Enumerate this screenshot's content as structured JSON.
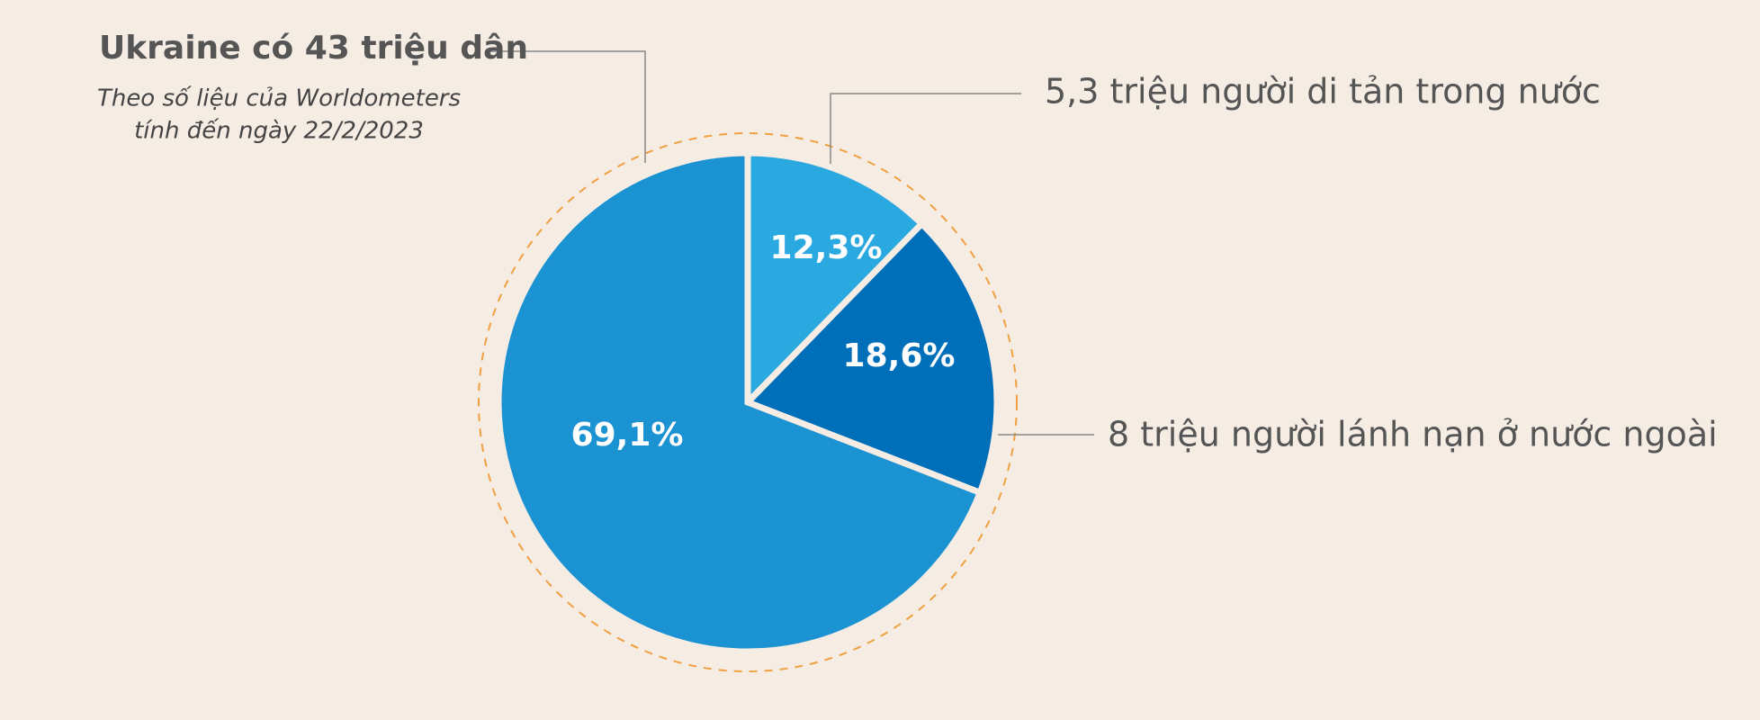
{
  "chart_data": {
    "type": "pie",
    "title": "Ukraine có 43 triệu dân",
    "subtitle": [
      "Theo số liệu của Worldometers",
      "tính đến ngày 22/2/2023"
    ],
    "categories": [
      "5,3 triệu người di tản trong nước",
      "8 triệu người lánh nạn ở nước ngoài",
      null
    ],
    "values": [
      12.3,
      18.6,
      69.1
    ],
    "value_labels": [
      "12,3%",
      "18,6%",
      "69,1%"
    ],
    "colors": [
      "#2aa8e0",
      "#006fba",
      "#1b92d2"
    ]
  }
}
